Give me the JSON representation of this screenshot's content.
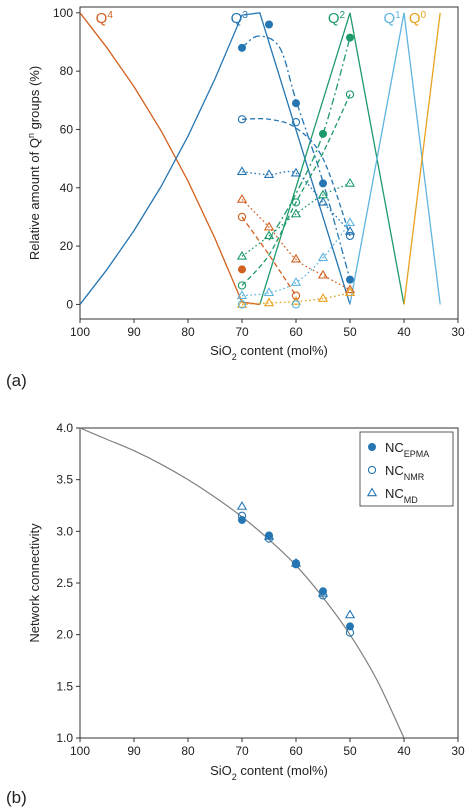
{
  "colors": {
    "Q4": "#d2601f",
    "Q3": "#2576b3",
    "Q2": "#1f9a6a",
    "Q1": "#5fb4e0",
    "Q0": "#e8a21e",
    "curve": "#808080",
    "nc": "#2576b3"
  },
  "chart_data": [
    {
      "type": "line",
      "panel_label": "(a)",
      "xlabel": {
        "pre": "SiO",
        "sub": "2",
        "post": " content (mol%)"
      },
      "ylabel": {
        "pre": "Relative amount of Q",
        "sup": "n",
        "post": " groups (%)"
      },
      "xlim": [
        100,
        30
      ],
      "ylim": [
        -5,
        102
      ],
      "xticks": [
        100,
        90,
        80,
        70,
        60,
        50,
        40,
        30
      ],
      "yticks": [
        0,
        20,
        40,
        60,
        80,
        100
      ],
      "legend": "inline series labels at top",
      "series_labels": [
        {
          "series": "Q4",
          "text": "Q",
          "sup": "4",
          "x": 95.5,
          "y": 96.5
        },
        {
          "series": "Q3",
          "text": "Q",
          "sup": "3",
          "x": 70.5,
          "y": 96.5
        },
        {
          "series": "Q2",
          "text": "Q",
          "sup": "2",
          "x": 52.5,
          "y": 96.5
        },
        {
          "series": "Q1",
          "text": "Q",
          "sup": "1",
          "x": 42.2,
          "y": 96.5
        },
        {
          "series": "Q0",
          "text": "Q",
          "sup": "0",
          "x": 37.5,
          "y": 96.5
        }
      ],
      "model_lines": [
        {
          "series": "Q4",
          "style": "solid",
          "x": [
            100,
            95,
            90,
            85,
            80,
            75,
            70,
            66.7
          ],
          "y": [
            100,
            88,
            74.7,
            59.6,
            42.3,
            22.6,
            0.8,
            0
          ]
        },
        {
          "series": "Q3",
          "style": "solid",
          "x": [
            100,
            95,
            90,
            85,
            80,
            75,
            70,
            66.7,
            50
          ],
          "y": [
            0,
            12,
            25.3,
            40.4,
            57.7,
            77.4,
            99.2,
            100,
            0
          ]
        },
        {
          "series": "Q2",
          "style": "solid",
          "x": [
            66.7,
            50,
            40
          ],
          "y": [
            0,
            100,
            0
          ]
        },
        {
          "series": "Q1",
          "style": "solid",
          "x": [
            50,
            40,
            33.3
          ],
          "y": [
            0,
            100,
            0
          ]
        },
        {
          "series": "Q0",
          "style": "solid",
          "x": [
            40,
            33.3
          ],
          "y": [
            0,
            100
          ]
        }
      ],
      "epma": [
        {
          "series": "Q3",
          "x": [
            70,
            65,
            60,
            55,
            50
          ],
          "y": [
            88,
            96,
            69,
            41.5,
            8.5
          ]
        },
        {
          "series": "Q2",
          "x": [
            55,
            50
          ],
          "y": [
            58.5,
            91.5
          ]
        },
        {
          "series": "Q4",
          "x": [
            70
          ],
          "y": [
            12
          ]
        }
      ],
      "nmr": [
        {
          "series": "Q3",
          "x": [
            70,
            60,
            50
          ],
          "y": [
            63.5,
            62.5,
            23.5
          ]
        },
        {
          "series": "Q2",
          "x": [
            70,
            60,
            50
          ],
          "y": [
            6.5,
            35,
            72
          ]
        },
        {
          "series": "Q4",
          "x": [
            70,
            60
          ],
          "y": [
            30,
            3
          ]
        },
        {
          "series": "Q1",
          "x": [
            70,
            60
          ],
          "y": [
            0,
            0
          ]
        }
      ],
      "md": [
        {
          "series": "Q3",
          "x": [
            70,
            65,
            60,
            55,
            50
          ],
          "y": [
            45.5,
            44.5,
            45,
            35,
            25
          ]
        },
        {
          "series": "Q2",
          "x": [
            70,
            65,
            60,
            55,
            50
          ],
          "y": [
            16.5,
            23.5,
            31,
            37.5,
            41.5
          ]
        },
        {
          "series": "Q4",
          "x": [
            70,
            65,
            60,
            55,
            50
          ],
          "y": [
            36,
            26.5,
            15.5,
            10,
            5
          ]
        },
        {
          "series": "Q1",
          "x": [
            70,
            65,
            60,
            55,
            50
          ],
          "y": [
            3,
            4,
            7.5,
            16,
            28
          ]
        },
        {
          "series": "Q0",
          "x": [
            70,
            65,
            60,
            55,
            50
          ],
          "y": [
            0,
            0.5,
            1,
            2,
            4
          ]
        }
      ],
      "trend_lines": [
        {
          "series": "Q3",
          "style": "dash",
          "x": [
            70,
            65,
            60,
            55,
            50
          ],
          "y": [
            63.5,
            63.5,
            60.5,
            50,
            23.5
          ]
        },
        {
          "series": "Q3",
          "style": "dashdot",
          "x": [
            70,
            67,
            63,
            60,
            55,
            50
          ],
          "y": [
            88,
            92,
            88,
            70,
            42,
            8.5
          ]
        },
        {
          "series": "Q2",
          "style": "dash",
          "x": [
            70,
            65,
            60,
            55,
            50
          ],
          "y": [
            6.5,
            17,
            35,
            52,
            72
          ]
        },
        {
          "series": "Q2",
          "style": "dashdot",
          "x": [
            65,
            60,
            55,
            50
          ],
          "y": [
            22,
            38,
            58.5,
            91.5
          ]
        },
        {
          "series": "Q4",
          "style": "dash",
          "x": [
            70,
            65,
            60
          ],
          "y": [
            30,
            17,
            3
          ]
        },
        {
          "series": "Q3",
          "style": "dot",
          "x": [
            70,
            65,
            60,
            55,
            50
          ],
          "y": [
            45.5,
            44.5,
            45,
            35,
            25
          ]
        },
        {
          "series": "Q2",
          "style": "dot",
          "x": [
            70,
            65,
            60,
            55,
            50
          ],
          "y": [
            16.5,
            23.5,
            31,
            37.5,
            41.5
          ]
        },
        {
          "series": "Q4",
          "style": "dot",
          "x": [
            70,
            65,
            60,
            55,
            50
          ],
          "y": [
            36,
            26.5,
            15.5,
            10,
            5
          ]
        },
        {
          "series": "Q1",
          "style": "dot",
          "x": [
            70,
            65,
            60,
            55,
            50
          ],
          "y": [
            3,
            4,
            7.5,
            16,
            28
          ]
        },
        {
          "series": "Q0",
          "style": "dot",
          "x": [
            70,
            65,
            60,
            55,
            50
          ],
          "y": [
            0,
            0.5,
            1,
            2,
            4
          ]
        }
      ]
    },
    {
      "type": "scatter",
      "panel_label": "(b)",
      "xlabel": {
        "pre": "SiO",
        "sub": "2",
        "post": " content (mol%)"
      },
      "ylabel": "Network connectivity",
      "xlim": [
        100,
        30
      ],
      "ylim": [
        1.0,
        4.0
      ],
      "xticks": [
        100,
        90,
        80,
        70,
        60,
        50,
        40,
        30
      ],
      "yticks": [
        1.0,
        1.5,
        2.0,
        2.5,
        3.0,
        3.5,
        4.0
      ],
      "legend_position": "top-right",
      "curve": {
        "x": [
          100,
          95,
          90,
          85,
          80,
          75,
          70,
          65,
          60,
          55,
          50,
          45,
          40
        ],
        "y": [
          4.0,
          3.89,
          3.78,
          3.65,
          3.5,
          3.33,
          3.14,
          2.92,
          2.67,
          2.36,
          2.0,
          1.56,
          1.0
        ]
      },
      "series": [
        {
          "name": "NC",
          "sub": "EPMA",
          "marker": "filled-circle",
          "x": [
            70,
            65,
            60,
            55,
            50
          ],
          "y": [
            3.11,
            2.96,
            2.68,
            2.42,
            2.08
          ]
        },
        {
          "name": "NC",
          "sub": "NMR",
          "marker": "open-circle",
          "x": [
            70,
            65,
            60,
            55,
            50
          ],
          "y": [
            3.15,
            2.93,
            2.69,
            2.38,
            2.02
          ]
        },
        {
          "name": "NC",
          "sub": "MD",
          "marker": "open-triangle",
          "x": [
            70,
            65,
            60,
            55,
            50
          ],
          "y": [
            3.24,
            2.95,
            2.69,
            2.4,
            2.19
          ]
        }
      ]
    }
  ]
}
